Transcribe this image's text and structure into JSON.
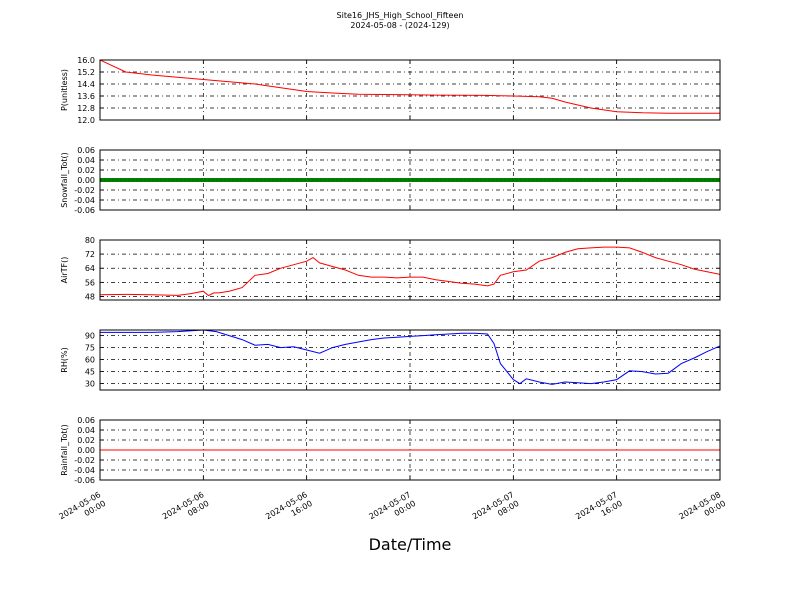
{
  "figure": {
    "title": "Site16_JHS_High_School_Fifteen",
    "subtitle": "2024-05-08 - (2024-129)",
    "xlabel": "Date/Time"
  },
  "x_ticks": [
    {
      "time": "2024-05-06 00:00",
      "line1": "2024-05-06",
      "line2": "00:00"
    },
    {
      "time": "2024-05-06 08:00",
      "line1": "2024-05-06",
      "line2": "08:00"
    },
    {
      "time": "2024-05-06 16:00",
      "line1": "2024-05-06",
      "line2": "16:00"
    },
    {
      "time": "2024-05-07 00:00",
      "line1": "2024-05-07",
      "line2": "00:00"
    },
    {
      "time": "2024-05-07 08:00",
      "line1": "2024-05-07",
      "line2": "08:00"
    },
    {
      "time": "2024-05-07 16:00",
      "line1": "2024-05-07",
      "line2": "16:00"
    },
    {
      "time": "2024-05-08 00:00",
      "line1": "2024-05-08",
      "line2": "00:00"
    }
  ],
  "chart_data": [
    {
      "type": "line",
      "ylabel": "P(unitless)",
      "color": "#ff0000",
      "ylim": [
        12.0,
        16.0
      ],
      "yticks": [
        "16.0",
        "15.2",
        "14.4",
        "13.6",
        "12.8",
        "12.0"
      ],
      "grid": true,
      "x_range": [
        "2024-05-06 00:00",
        "2024-05-08 00:00"
      ],
      "x_hours": [
        0,
        2,
        4,
        6,
        8,
        10,
        12,
        14,
        16,
        18,
        20,
        22,
        24,
        26,
        28,
        30,
        31,
        32,
        34,
        35,
        36,
        38,
        40,
        42,
        44,
        46,
        48
      ],
      "values": [
        16.0,
        15.2,
        15.0,
        14.85,
        14.7,
        14.55,
        14.4,
        14.15,
        13.9,
        13.8,
        13.72,
        13.7,
        13.68,
        13.66,
        13.65,
        13.64,
        13.62,
        13.6,
        13.55,
        13.45,
        13.2,
        12.8,
        12.55,
        12.48,
        12.45,
        12.45,
        12.45
      ]
    },
    {
      "type": "line",
      "ylabel": "Snowfall_Tot()",
      "color": "#008000",
      "ylim": [
        -0.06,
        0.06
      ],
      "yticks": [
        "0.06",
        "0.04",
        "0.02",
        "0.00",
        "-0.02",
        "-0.04",
        "-0.06"
      ],
      "grid": true,
      "x_range": [
        "2024-05-06 00:00",
        "2024-05-08 00:00"
      ],
      "x_hours": [
        0,
        48
      ],
      "values": [
        0.0,
        0.0
      ]
    },
    {
      "type": "line",
      "ylabel": "AirTF()",
      "color": "#ff0000",
      "ylim": [
        46,
        80
      ],
      "yticks": [
        "80",
        "72",
        "64",
        "56",
        "48"
      ],
      "grid": true,
      "x_range": [
        "2024-05-06 00:00",
        "2024-05-08 00:00"
      ],
      "x_hours": [
        0,
        2,
        4,
        6,
        7,
        8,
        8.4,
        8.8,
        9.2,
        10,
        11,
        12,
        13,
        14,
        15,
        16,
        16.5,
        17,
        18,
        19,
        20,
        21,
        22,
        23,
        24,
        25,
        26,
        27,
        28,
        29,
        30,
        30.5,
        31,
        32,
        33,
        34,
        35,
        36,
        37,
        38,
        39,
        40,
        41,
        42,
        43,
        44,
        45,
        46,
        47,
        48
      ],
      "values": [
        49,
        49.2,
        49,
        48.6,
        49.5,
        51,
        48.5,
        50,
        50,
        51,
        53,
        60,
        61,
        64,
        66,
        68,
        70,
        67,
        65,
        63,
        60,
        59,
        59,
        58.5,
        59,
        59,
        57.5,
        56.5,
        55.5,
        55,
        54,
        55,
        60,
        62,
        63,
        68,
        70,
        73,
        75,
        75.5,
        76,
        76,
        75.5,
        73,
        70,
        68,
        66,
        63.5,
        62,
        60.5
      ]
    },
    {
      "type": "line",
      "ylabel": "RH(%)",
      "color": "#0000ff",
      "ylim": [
        22,
        97
      ],
      "yticks": [
        "90",
        "75",
        "60",
        "45",
        "30"
      ],
      "grid": true,
      "x_range": [
        "2024-05-06 00:00",
        "2024-05-08 00:00"
      ],
      "x_hours": [
        0,
        4,
        6,
        8,
        9,
        10,
        11,
        12,
        13,
        14,
        15,
        16,
        17,
        18,
        19,
        20,
        21,
        22,
        23,
        24,
        25,
        26,
        27,
        28,
        29,
        30,
        30.5,
        31,
        31.5,
        32,
        32.5,
        33,
        34,
        35,
        36,
        37,
        38,
        39,
        40,
        41,
        42,
        43,
        44,
        45,
        46,
        47,
        48
      ],
      "values": [
        94,
        94,
        95,
        97,
        95,
        90,
        85,
        78,
        79,
        75,
        76,
        72,
        68,
        75,
        79,
        82,
        85,
        87,
        88,
        89,
        90,
        91,
        92,
        93,
        93,
        92,
        80,
        55,
        45,
        35,
        30,
        36,
        32,
        29,
        32,
        31,
        30,
        32,
        35,
        46,
        45,
        42,
        43,
        55,
        62,
        70,
        77
      ]
    },
    {
      "type": "line",
      "ylabel": "Rainfall_Tot()",
      "color": "#ff0000",
      "ylim": [
        -0.06,
        0.06
      ],
      "yticks": [
        "0.06",
        "0.04",
        "0.02",
        "0.00",
        "-0.02",
        "-0.04",
        "-0.06"
      ],
      "grid": true,
      "x_range": [
        "2024-05-06 00:00",
        "2024-05-08 00:00"
      ],
      "x_hours": [
        0,
        48
      ],
      "values": [
        0.0,
        0.0
      ]
    }
  ]
}
